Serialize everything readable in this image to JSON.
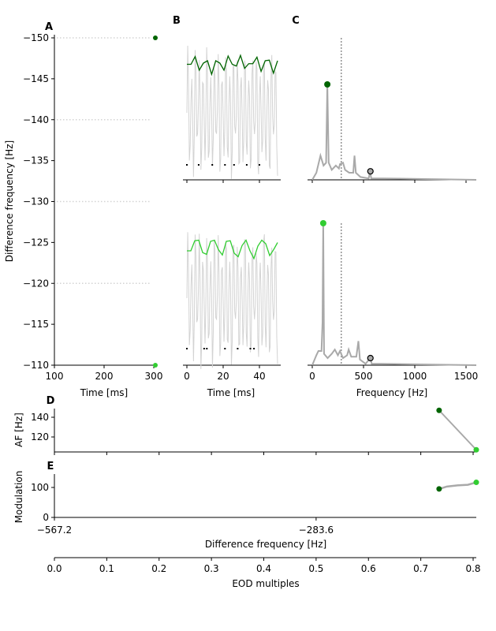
{
  "chart_data": {
    "colors": {
      "dark_green": "#006400",
      "light_green": "#32cd32",
      "gray": "#a9a9a9",
      "light_gray": "#d3d3d3"
    },
    "panels": {
      "A": {
        "label": "A",
        "type": "scatter",
        "xlabel": "Time [ms]",
        "ylabel": "Difference frequency [Hz]",
        "xlim": [
          100,
          305
        ],
        "ylim": [
          -150,
          -110
        ],
        "xticks": [
          "100",
          "200",
          "300"
        ],
        "xtick_values": [
          100,
          200,
          300
        ],
        "yticks": [
          "−150",
          "−145",
          "−140",
          "−135",
          "−130",
          "−125",
          "−120",
          "−115",
          "−110"
        ],
        "ytick_values": [
          -150,
          -145,
          -140,
          -135,
          -130,
          -125,
          -120,
          -115,
          -110
        ],
        "spike_rows": [
          -150,
          -140,
          -130,
          -120
        ],
        "markers": [
          {
            "x": 305,
            "y": -150,
            "color": "dark_green"
          },
          {
            "x": 305,
            "y": -110,
            "color": "light_green"
          }
        ]
      },
      "B": {
        "label": "B",
        "type": "line",
        "xlabel": "Time [ms]",
        "xlim": [
          -2,
          52
        ],
        "xticks": [
          "0",
          "20",
          "40"
        ],
        "xtick_values": [
          0,
          20,
          40
        ],
        "top": {
          "envelope": [
            0.82,
            0.82,
            0.95,
            0.72,
            0.84,
            0.88,
            0.65,
            0.88,
            0.84,
            0.72,
            0.96,
            0.82,
            0.79,
            0.97,
            0.75,
            0.83,
            0.83,
            0.94,
            0.7,
            0.88,
            0.89,
            0.67,
            0.88
          ],
          "spikes_ms": [
            0,
            6.5,
            14,
            21,
            26,
            33,
            40
          ],
          "color": "dark_green"
        },
        "bottom": {
          "envelope": [
            0.8,
            0.8,
            0.97,
            0.98,
            0.77,
            0.74,
            0.96,
            0.98,
            0.82,
            0.73,
            0.96,
            0.97,
            0.76,
            0.7,
            0.89,
            0.98,
            0.8,
            0.67,
            0.88,
            0.98,
            0.92,
            0.72,
            0.82,
            0.94
          ],
          "spikes_ms": [
            0,
            9.5,
            11,
            21,
            28,
            35,
            37
          ],
          "color": "light_green"
        }
      },
      "C": {
        "label": "C",
        "type": "line",
        "xlabel": "Frequency [Hz]",
        "xlim": [
          -40,
          1600
        ],
        "xticks": [
          "0",
          "500",
          "1000",
          "1500"
        ],
        "xtick_values": [
          0,
          500,
          1000,
          1500
        ],
        "eod_half_line": 283.6,
        "top": {
          "spectrum": [
            [
              0,
              0
            ],
            [
              40,
              0.05
            ],
            [
              80,
              0.17
            ],
            [
              110,
              0.1
            ],
            [
              135,
              0.12
            ],
            [
              147,
              0.67
            ],
            [
              160,
              0.12
            ],
            [
              190,
              0.07
            ],
            [
              230,
              0.1
            ],
            [
              260,
              0.08
            ],
            [
              270,
              0.11
            ],
            [
              300,
              0.12
            ],
            [
              320,
              0.07
            ],
            [
              360,
              0.05
            ],
            [
              400,
              0.05
            ],
            [
              412,
              0.17
            ],
            [
              425,
              0.05
            ],
            [
              470,
              0.02
            ],
            [
              550,
              0.01
            ],
            [
              565,
              0.06
            ],
            [
              575,
              0.01
            ],
            [
              700,
              0.01
            ],
            [
              1600,
              0
            ]
          ],
          "peak": {
            "freq": 147,
            "power": 0.67,
            "color": "dark_green"
          },
          "eod_marker": {
            "freq": 567.2,
            "power": 0.06
          }
        },
        "bottom": {
          "spectrum": [
            [
              0,
              0
            ],
            [
              40,
              0.07
            ],
            [
              60,
              0.1
            ],
            [
              90,
              0.1
            ],
            [
              100,
              0.3
            ],
            [
              107,
              1.0
            ],
            [
              115,
              0.08
            ],
            [
              150,
              0.05
            ],
            [
              190,
              0.08
            ],
            [
              220,
              0.11
            ],
            [
              250,
              0.07
            ],
            [
              270,
              0.1
            ],
            [
              300,
              0.05
            ],
            [
              340,
              0.07
            ],
            [
              355,
              0.11
            ],
            [
              380,
              0.06
            ],
            [
              430,
              0.06
            ],
            [
              450,
              0.17
            ],
            [
              465,
              0.04
            ],
            [
              520,
              0.01
            ],
            [
              565,
              0.05
            ],
            [
              580,
              0.01
            ],
            [
              670,
              0.01
            ],
            [
              1600,
              0
            ]
          ],
          "peak": {
            "freq": 107,
            "power": 1.0,
            "color": "light_green"
          },
          "eod_marker": {
            "freq": 567.2,
            "power": 0.05
          }
        }
      },
      "D": {
        "label": "D",
        "type": "line",
        "ylabel": "AF [Hz]",
        "yticks": [
          "120",
          "140"
        ],
        "ytick_values": [
          120,
          140
        ],
        "ylim": [
          105,
          150
        ],
        "x_eod": [
          0.735,
          0.806
        ],
        "y": [
          147,
          107
        ],
        "colors": [
          "dark_green",
          "light_green"
        ]
      },
      "E": {
        "label": "E",
        "type": "line",
        "ylabel": "Modulation",
        "yticks": [
          "0",
          "100"
        ],
        "ytick_values": [
          0,
          100
        ],
        "ylim": [
          0,
          145
        ],
        "x_eod": [
          0.735,
          0.75,
          0.77,
          0.79,
          0.806
        ],
        "y": [
          95,
          103,
          107,
          109,
          117
        ],
        "marker_colors": [
          "dark_green",
          "light_green"
        ],
        "xlabel": "Difference frequency [Hz]",
        "xticks": [
          "−567.2",
          "−283.6"
        ],
        "xtick_eod": [
          0,
          0.5
        ]
      },
      "EOD": {
        "xlabel": "EOD multiples",
        "xlim": [
          0,
          0.806
        ],
        "xticks": [
          "0.0",
          "0.1",
          "0.2",
          "0.3",
          "0.4",
          "0.5",
          "0.6",
          "0.7",
          "0.8"
        ],
        "xtick_values": [
          0,
          0.1,
          0.2,
          0.3,
          0.4,
          0.5,
          0.6,
          0.7,
          0.8
        ]
      }
    }
  }
}
